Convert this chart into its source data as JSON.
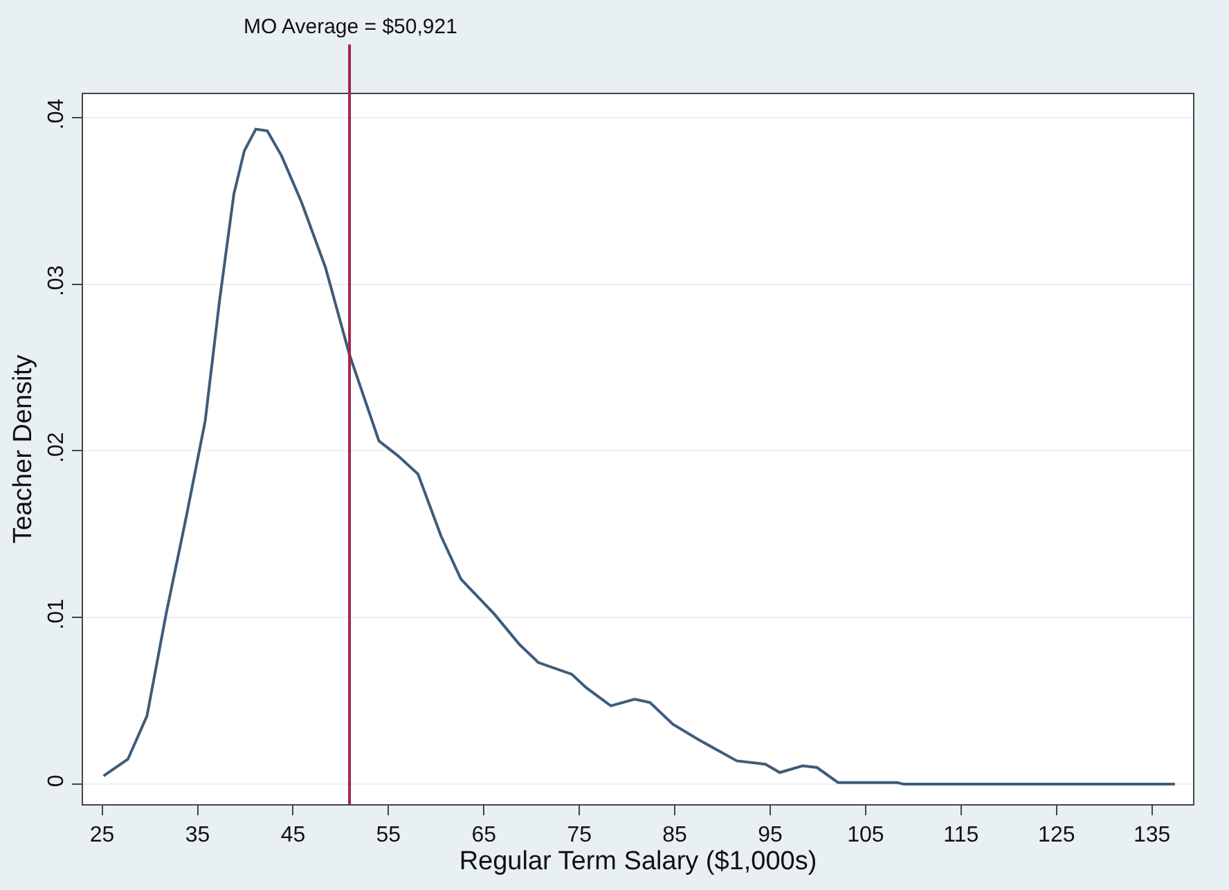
{
  "chart_data": {
    "type": "line",
    "xlabel": "Regular Term Salary ($1,000s)",
    "ylabel": "Teacher Density",
    "x": [
      25.15,
      27.7,
      29.7,
      31.7,
      33.8,
      35.8,
      37.3,
      38.8,
      39.9,
      41.1,
      42.3,
      43.8,
      45.9,
      48.4,
      50.9,
      54,
      56,
      58.1,
      60.5,
      62.6,
      66.1,
      68.7,
      70.7,
      74.2,
      75.7,
      78.3,
      80.8,
      82.4,
      84.8,
      87.4,
      91.5,
      94.5,
      96,
      98.4,
      99.9,
      102.1,
      108.3,
      109,
      137.4
    ],
    "series": [
      {
        "color": "#3e5c7a",
        "values": [
          0.0005,
          0.0015,
          0.0041,
          0.0102,
          0.016,
          0.0218,
          0.029,
          0.0354,
          0.038,
          0.0393,
          0.0392,
          0.0377,
          0.0349,
          0.031,
          0.0258,
          0.0206,
          0.0197,
          0.0186,
          0.0149,
          0.0123,
          0.0102,
          0.0084,
          0.0073,
          0.0066,
          0.0058,
          0.0047,
          0.0051,
          0.0049,
          0.0036,
          0.0027,
          0.0014,
          0.0012,
          0.0007,
          0.0011,
          0.001,
          0.0001,
          0.0001,
          0,
          0
        ]
      }
    ],
    "xlim": [
      23,
      139.3
    ],
    "ylim": [
      -0.0012,
      0.0414
    ],
    "xticks": [
      25,
      35,
      45,
      55,
      65,
      75,
      85,
      95,
      105,
      115,
      125,
      135
    ],
    "yticks": [
      0,
      {
        "value": 0.01,
        "label": ".01"
      },
      {
        "value": 0.02,
        "label": ".02"
      },
      {
        "value": 0.03,
        "label": ".03"
      },
      {
        "value": 0.04,
        "label": ".04"
      }
    ],
    "ref_lines": [
      {
        "axis": "x",
        "value": 50.921,
        "label": "MO Average = $50,921",
        "color": "#a3234f"
      }
    ],
    "grid": "y",
    "marker": "none",
    "line_style": "solid"
  }
}
